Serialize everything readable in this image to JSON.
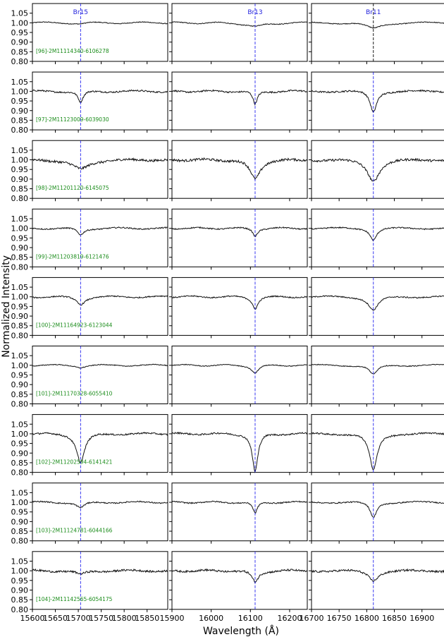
{
  "chart_data": {
    "type": "line",
    "ylabel": "Normalized Intensity",
    "xlabel": "Wavelength (Å)",
    "ylim": [
      0.8,
      1.1
    ],
    "y_ticks": [
      "1.05",
      "1.00",
      "0.95",
      "0.90",
      "0.85",
      "0.80"
    ],
    "grid": false,
    "columns": [
      {
        "line": "Br15",
        "center": 15705,
        "xlim": [
          15600,
          15895
        ],
        "x_ticks": [
          "15600",
          "15650",
          "15700",
          "15750",
          "15800",
          "15850"
        ]
      },
      {
        "line": "Br13",
        "center": 16112,
        "xlim": [
          15900,
          16245
        ],
        "x_ticks": [
          "15900",
          "16000",
          "16100",
          "16200"
        ]
      },
      {
        "line": "Br11",
        "center": 16812,
        "xlim": [
          16700,
          16945
        ],
        "x_ticks": [
          "16700",
          "16750",
          "16800",
          "16850",
          "16900"
        ]
      }
    ],
    "stars": [
      {
        "label": "[96]-2M11114340-6106278",
        "depth": [
          0.005,
          0.02,
          0.03
        ],
        "width": [
          15,
          30,
          18
        ],
        "noise": 0.002
      },
      {
        "label": "[97]-2M11123009-6039030",
        "depth": [
          0.06,
          0.07,
          0.11
        ],
        "width": [
          8,
          8,
          8
        ],
        "noise": 0.004
      },
      {
        "label": "[98]-2M11201120-6145075",
        "depth": [
          0.05,
          0.1,
          0.11
        ],
        "width": [
          25,
          18,
          15
        ],
        "noise": 0.006
      },
      {
        "label": "[99]-2M11203819-6121476",
        "depth": [
          0.035,
          0.04,
          0.06
        ],
        "width": [
          10,
          8,
          8
        ],
        "noise": 0.003
      },
      {
        "label": "[100]-2M11164923-6123044",
        "depth": [
          0.04,
          0.06,
          0.07
        ],
        "width": [
          12,
          10,
          12
        ],
        "noise": 0.003
      },
      {
        "label": "[101]-2M11170328-6055410",
        "depth": [
          0.01,
          0.04,
          0.05
        ],
        "width": [
          12,
          12,
          10
        ],
        "noise": 0.002
      },
      {
        "label": "[102]-2M11202594-6141421",
        "depth": [
          0.15,
          0.2,
          0.19
        ],
        "width": [
          12,
          10,
          10
        ],
        "noise": 0.004
      },
      {
        "label": "[103]-2M11124781-6044166",
        "depth": [
          0.03,
          0.06,
          0.08
        ],
        "width": [
          12,
          8,
          8
        ],
        "noise": 0.003
      },
      {
        "label": "[104]-2M11142565-6054175",
        "depth": [
          0.02,
          0.06,
          0.05
        ],
        "width": [
          15,
          12,
          12
        ],
        "noise": 0.005
      }
    ]
  }
}
